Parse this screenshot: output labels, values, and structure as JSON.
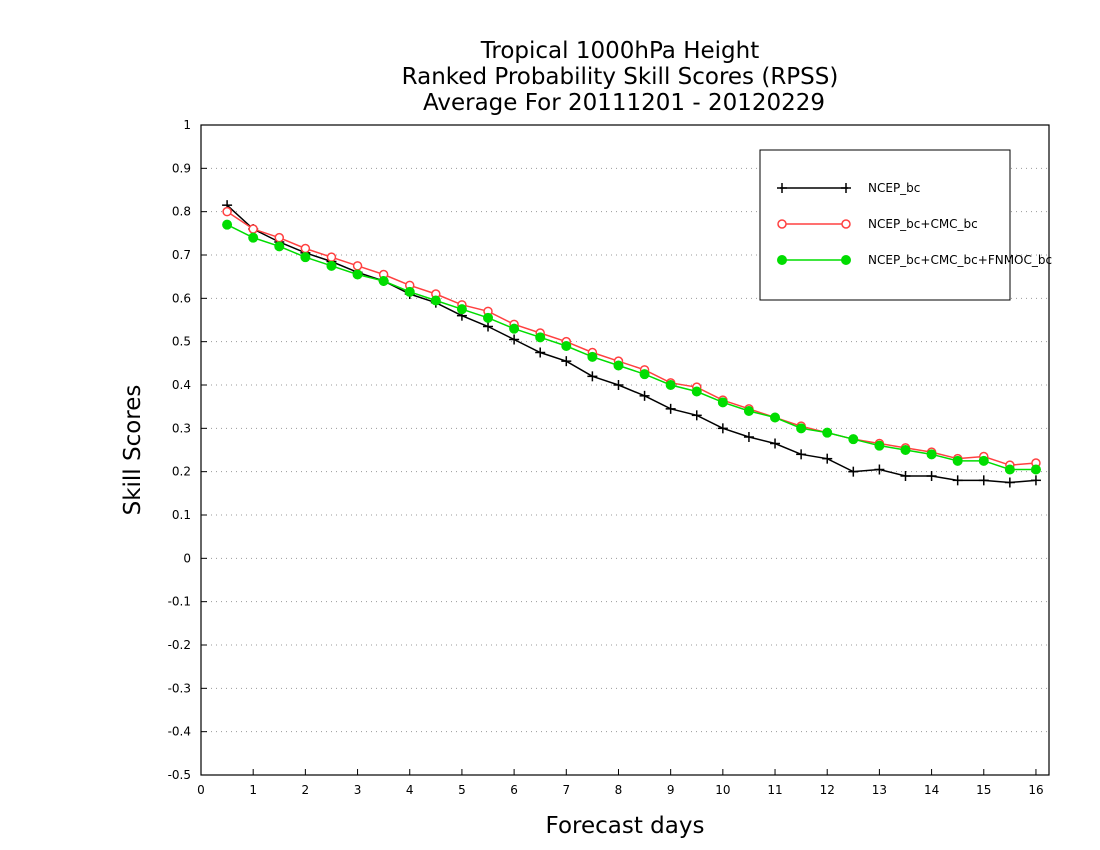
{
  "chart_data": {
    "type": "line",
    "title": [
      "Tropical 1000hPa Height",
      "Ranked Probability Skill Scores (RPSS)",
      "Average For 20111201 - 20120229"
    ],
    "xlabel": "Forecast days",
    "ylabel": "Skill Scores",
    "xlim": [
      0,
      16.25
    ],
    "ylim": [
      -0.5,
      1
    ],
    "xticks": [
      0,
      1,
      2,
      3,
      4,
      5,
      6,
      7,
      8,
      9,
      10,
      11,
      12,
      13,
      14,
      15,
      16
    ],
    "yticks": [
      -0.5,
      -0.4,
      -0.3,
      -0.2,
      -0.1,
      0,
      0.1,
      0.2,
      0.3,
      0.4,
      0.5,
      0.6,
      0.7,
      0.8,
      0.9,
      1
    ],
    "ytick_labels": [
      "-0.5",
      "-0.4",
      "-0.3",
      "-0.2",
      "-0.1",
      "0",
      "0.1",
      "0.2",
      "0.3",
      "0.4",
      "0.5",
      "0.6",
      "0.7",
      "0.8",
      "0.9",
      "1"
    ],
    "grid": true,
    "legend_position": "top-right",
    "x": [
      0.5,
      1,
      1.5,
      2,
      2.5,
      3,
      3.5,
      4,
      4.5,
      5,
      5.5,
      6,
      6.5,
      7,
      7.5,
      8,
      8.5,
      9,
      9.5,
      10,
      10.5,
      11,
      11.5,
      12,
      12.5,
      13,
      13.5,
      14,
      14.5,
      15,
      15.5,
      16
    ],
    "series": [
      {
        "name": "NCEP_bc",
        "color": "#000000",
        "marker": "plus",
        "values": [
          0.815,
          0.76,
          0.73,
          0.705,
          0.685,
          0.66,
          0.64,
          0.61,
          0.59,
          0.56,
          0.535,
          0.505,
          0.475,
          0.455,
          0.42,
          0.4,
          0.375,
          0.345,
          0.33,
          0.3,
          0.28,
          0.265,
          0.24,
          0.23,
          0.2,
          0.205,
          0.19,
          0.19,
          0.18,
          0.18,
          0.175,
          0.18
        ]
      },
      {
        "name": "NCEP_bc+CMC_bc",
        "color": "#ff4040",
        "marker": "open-circle",
        "values": [
          0.8,
          0.76,
          0.74,
          0.715,
          0.695,
          0.675,
          0.655,
          0.63,
          0.61,
          0.585,
          0.57,
          0.54,
          0.52,
          0.5,
          0.475,
          0.455,
          0.435,
          0.405,
          0.395,
          0.365,
          0.345,
          0.325,
          0.305,
          0.29,
          0.275,
          0.265,
          0.255,
          0.245,
          0.23,
          0.235,
          0.215,
          0.22
        ]
      },
      {
        "name": "NCEP_bc+CMC_bc+FNMOC_bc",
        "color": "#00dd00",
        "marker": "filled-circle",
        "values": [
          0.77,
          0.74,
          0.72,
          0.695,
          0.675,
          0.655,
          0.64,
          0.615,
          0.595,
          0.575,
          0.555,
          0.53,
          0.51,
          0.49,
          0.465,
          0.445,
          0.425,
          0.4,
          0.385,
          0.36,
          0.34,
          0.325,
          0.3,
          0.29,
          0.275,
          0.26,
          0.25,
          0.24,
          0.225,
          0.225,
          0.205,
          0.205
        ]
      }
    ]
  }
}
